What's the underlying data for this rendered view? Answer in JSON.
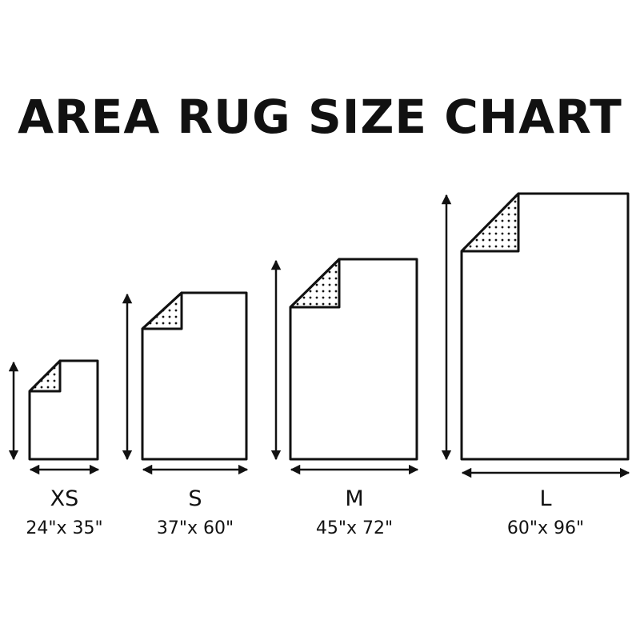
{
  "title": "AREA RUG SIZE CHART",
  "colors": {
    "stroke": "#111111",
    "background": "#ffffff"
  },
  "sizes": [
    {
      "label": "XS",
      "dimensions": "24\"x 35\"",
      "width_in": 24,
      "length_in": 35
    },
    {
      "label": "S",
      "dimensions": "37\"x 60\"",
      "width_in": 37,
      "length_in": 60
    },
    {
      "label": "M",
      "dimensions": "45\"x 72\"",
      "width_in": 45,
      "length_in": 72
    },
    {
      "label": "L",
      "dimensions": "60\"x 96\"",
      "width_in": 60,
      "length_in": 96
    }
  ]
}
